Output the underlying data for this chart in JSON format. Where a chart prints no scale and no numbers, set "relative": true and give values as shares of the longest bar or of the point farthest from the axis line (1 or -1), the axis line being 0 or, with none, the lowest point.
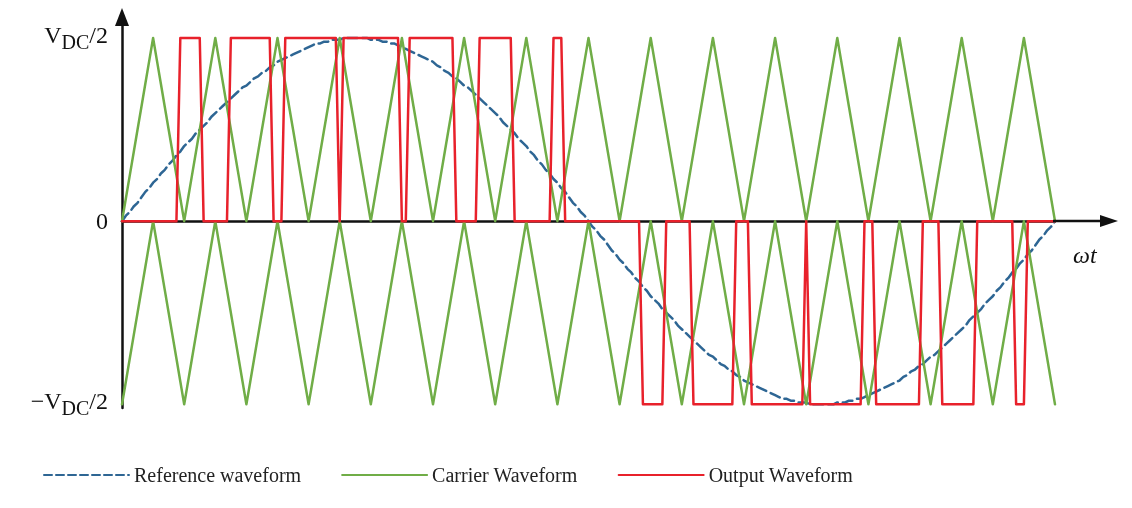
{
  "chart_data": {
    "type": "line",
    "xlabel": "ωt",
    "relative": true,
    "annotations": [
      "V$_{DC}$/2",
      "0",
      "−V$_{DC}$/2"
    ],
    "grid": false,
    "legend": "bottom",
    "marker": "none",
    "categories": [
      null,
      null,
      null,
      null,
      null,
      null,
      null,
      null,
      null,
      null,
      null,
      null,
      null,
      null,
      null,
      null,
      null,
      null,
      null,
      null,
      null,
      null,
      null,
      null,
      null,
      null,
      null,
      null,
      null,
      null,
      null,
      null,
      null,
      null,
      null,
      null,
      null,
      null,
      null,
      null,
      null,
      null,
      null,
      null,
      null,
      null,
      null,
      null,
      null,
      null,
      null,
      null,
      null,
      null,
      null,
      null,
      null,
      null,
      null,
      null,
      null,
      null,
      null,
      null,
      null,
      null,
      null,
      null,
      null,
      null,
      null,
      null,
      null,
      null,
      null,
      null,
      null,
      null,
      null,
      null,
      null,
      null,
      null,
      null,
      null,
      null,
      null,
      null,
      null,
      null,
      null,
      null,
      null,
      null,
      null,
      null,
      null,
      null,
      null,
      null,
      null,
      null,
      null,
      null,
      null,
      null,
      null,
      null,
      null,
      null,
      null,
      null,
      null,
      null,
      null,
      null,
      null,
      null,
      null,
      null,
      null,
      null,
      null,
      null,
      null,
      null,
      null,
      null,
      null,
      null,
      null,
      null,
      null,
      null,
      null,
      null,
      null,
      null,
      null,
      null,
      null,
      null,
      null,
      null,
      null,
      null,
      null,
      null,
      null,
      null,
      null,
      null,
      null,
      null,
      null,
      null,
      null,
      null,
      null,
      null,
      null,
      null,
      null,
      null,
      null,
      null,
      null,
      null,
      null,
      null,
      null,
      null,
      null,
      null,
      null,
      null,
      null,
      null,
      null,
      null,
      null,
      null,
      null,
      null,
      null,
      null,
      null,
      null,
      null,
      null,
      null,
      null,
      null,
      null,
      null,
      null,
      null,
      null,
      null,
      null,
      null,
      null,
      null,
      null,
      null,
      null,
      null,
      null,
      null,
      null,
      null,
      null,
      null,
      null,
      null,
      null,
      null,
      null,
      null,
      null,
      null,
      null,
      null,
      null,
      null,
      null,
      null,
      null,
      null,
      null,
      null,
      null,
      null,
      null,
      null,
      null,
      null,
      null,
      null,
      null,
      null
    ],
    "series": [
      {
        "name": "Reference waveform",
        "color": "#2e6694",
        "line_style": "dashed",
        "values": [
          0,
          0.03,
          0.05,
          0.08,
          0.1,
          0.13,
          0.16,
          0.18,
          0.21,
          0.23,
          0.26,
          0.28,
          0.31,
          0.33,
          0.36,
          0.38,
          0.41,
          0.43,
          0.45,
          0.48,
          0.5,
          0.52,
          0.54,
          0.57,
          0.59,
          0.61,
          0.63,
          0.65,
          0.67,
          0.69,
          0.71,
          0.73,
          0.74,
          0.76,
          0.78,
          0.79,
          0.81,
          0.82,
          0.84,
          0.85,
          0.87,
          0.88,
          0.89,
          0.9,
          0.91,
          0.92,
          0.93,
          0.94,
          0.95,
          0.96,
          0.97,
          0.97,
          0.98,
          0.98,
          0.99,
          0.99,
          0.99,
          1,
          1,
          1,
          1,
          1,
          1,
          1,
          0.99,
          0.99,
          0.99,
          0.98,
          0.98,
          0.97,
          0.97,
          0.96,
          0.95,
          0.94,
          0.93,
          0.92,
          0.91,
          0.9,
          0.89,
          0.88,
          0.87,
          0.85,
          0.84,
          0.82,
          0.81,
          0.79,
          0.78,
          0.76,
          0.74,
          0.73,
          0.71,
          0.69,
          0.67,
          0.65,
          0.63,
          0.61,
          0.59,
          0.57,
          0.54,
          0.52,
          0.5,
          0.48,
          0.45,
          0.43,
          0.41,
          0.38,
          0.36,
          0.33,
          0.31,
          0.28,
          0.26,
          0.23,
          0.21,
          0.18,
          0.16,
          0.13,
          0.1,
          0.08,
          0.05,
          0.03,
          0,
          -0.03,
          -0.05,
          -0.08,
          -0.1,
          -0.13,
          -0.16,
          -0.18,
          -0.21,
          -0.23,
          -0.26,
          -0.28,
          -0.31,
          -0.33,
          -0.36,
          -0.38,
          -0.41,
          -0.43,
          -0.45,
          -0.48,
          -0.5,
          -0.52,
          -0.54,
          -0.57,
          -0.59,
          -0.61,
          -0.63,
          -0.65,
          -0.67,
          -0.69,
          -0.71,
          -0.73,
          -0.74,
          -0.76,
          -0.78,
          -0.79,
          -0.81,
          -0.82,
          -0.84,
          -0.85,
          -0.87,
          -0.88,
          -0.89,
          -0.9,
          -0.91,
          -0.92,
          -0.93,
          -0.94,
          -0.95,
          -0.96,
          -0.97,
          -0.97,
          -0.98,
          -0.98,
          -0.99,
          -0.99,
          -0.99,
          -1,
          -1,
          -1,
          -1,
          -1,
          -1,
          -1,
          -0.99,
          -0.99,
          -0.99,
          -0.98,
          -0.98,
          -0.97,
          -0.97,
          -0.96,
          -0.95,
          -0.94,
          -0.93,
          -0.92,
          -0.91,
          -0.9,
          -0.89,
          -0.88,
          -0.87,
          -0.85,
          -0.84,
          -0.82,
          -0.81,
          -0.79,
          -0.78,
          -0.76,
          -0.74,
          -0.73,
          -0.71,
          -0.69,
          -0.67,
          -0.65,
          -0.63,
          -0.61,
          -0.59,
          -0.57,
          -0.54,
          -0.52,
          -0.5,
          -0.48,
          -0.45,
          -0.43,
          -0.41,
          -0.38,
          -0.36,
          -0.33,
          -0.31,
          -0.28,
          -0.26,
          -0.23,
          -0.21,
          -0.18,
          -0.16,
          -0.13,
          -0.1,
          -0.08,
          -0.05,
          -0.03,
          0
        ]
      },
      {
        "name": "Carrier Waveform",
        "color": "#70ad47",
        "line_style": "solid",
        "values": [
          0,
          0.125,
          0.25,
          0.375,
          0.5,
          0.625,
          0.75,
          0.875,
          1,
          0.875,
          0.75,
          0.625,
          0.5,
          0.375,
          0.25,
          0.125,
          0,
          0.125,
          0.25,
          0.375,
          0.5,
          0.625,
          0.75,
          0.875,
          1,
          0.875,
          0.75,
          0.625,
          0.5,
          0.375,
          0.25,
          0.125,
          0,
          0.125,
          0.25,
          0.375,
          0.5,
          0.625,
          0.75,
          0.875,
          1,
          0.875,
          0.75,
          0.625,
          0.5,
          0.375,
          0.25,
          0.125,
          0,
          0.125,
          0.25,
          0.375,
          0.5,
          0.625,
          0.75,
          0.875,
          1,
          0.875,
          0.75,
          0.625,
          0.5,
          0.375,
          0.25,
          0.125,
          0,
          0.125,
          0.25,
          0.375,
          0.5,
          0.625,
          0.75,
          0.875,
          1,
          0.875,
          0.75,
          0.625,
          0.5,
          0.375,
          0.25,
          0.125,
          0,
          0.125,
          0.25,
          0.375,
          0.5,
          0.625,
          0.75,
          0.875,
          1,
          0.875,
          0.75,
          0.625,
          0.5,
          0.375,
          0.25,
          0.125,
          0,
          0.125,
          0.25,
          0.375,
          0.5,
          0.625,
          0.75,
          0.875,
          1,
          0.875,
          0.75,
          0.625,
          0.5,
          0.375,
          0.25,
          0.125,
          0,
          0.125,
          0.25,
          0.375,
          0.5,
          0.625,
          0.75,
          0.875,
          1,
          0.875,
          0.75,
          0.625,
          0.5,
          0.375,
          0.25,
          0.125,
          0,
          0.125,
          0.25,
          0.375,
          0.5,
          0.625,
          0.75,
          0.875,
          1,
          0.875,
          0.75,
          0.625,
          0.5,
          0.375,
          0.25,
          0.125,
          0,
          0.125,
          0.25,
          0.375,
          0.5,
          0.625,
          0.75,
          0.875,
          1,
          0.875,
          0.75,
          0.625,
          0.5,
          0.375,
          0.25,
          0.125,
          0,
          0.125,
          0.25,
          0.375,
          0.5,
          0.625,
          0.75,
          0.875,
          1,
          0.875,
          0.75,
          0.625,
          0.5,
          0.375,
          0.25,
          0.125,
          0,
          0.125,
          0.25,
          0.375,
          0.5,
          0.625,
          0.75,
          0.875,
          1,
          0.875,
          0.75,
          0.625,
          0.5,
          0.375,
          0.25,
          0.125,
          0,
          0.125,
          0.25,
          0.375,
          0.5,
          0.625,
          0.75,
          0.875,
          1,
          0.875,
          0.75,
          0.625,
          0.5,
          0.375,
          0.25,
          0.125,
          0,
          0.125,
          0.25,
          0.375,
          0.5,
          0.625,
          0.75,
          0.875,
          1,
          0.875,
          0.75,
          0.625,
          0.5,
          0.375,
          0.25,
          0.125,
          0,
          0.125,
          0.25,
          0.375,
          0.5,
          0.625,
          0.75,
          0.875,
          1,
          0.875,
          0.75,
          0.625,
          0.5,
          0.375,
          0.25,
          0.125,
          0
        ]
      },
      {
        "color": "#70ad47",
        "line_style": "solid",
        "values": [
          -1,
          -0.875,
          -0.75,
          -0.625,
          -0.5,
          -0.375,
          -0.25,
          -0.125,
          0,
          -0.125,
          -0.25,
          -0.375,
          -0.5,
          -0.625,
          -0.75,
          -0.875,
          -1,
          -0.875,
          -0.75,
          -0.625,
          -0.5,
          -0.375,
          -0.25,
          -0.125,
          0,
          -0.125,
          -0.25,
          -0.375,
          -0.5,
          -0.625,
          -0.75,
          -0.875,
          -1,
          -0.875,
          -0.75,
          -0.625,
          -0.5,
          -0.375,
          -0.25,
          -0.125,
          0,
          -0.125,
          -0.25,
          -0.375,
          -0.5,
          -0.625,
          -0.75,
          -0.875,
          -1,
          -0.875,
          -0.75,
          -0.625,
          -0.5,
          -0.375,
          -0.25,
          -0.125,
          0,
          -0.125,
          -0.25,
          -0.375,
          -0.5,
          -0.625,
          -0.75,
          -0.875,
          -1,
          -0.875,
          -0.75,
          -0.625,
          -0.5,
          -0.375,
          -0.25,
          -0.125,
          0,
          -0.125,
          -0.25,
          -0.375,
          -0.5,
          -0.625,
          -0.75,
          -0.875,
          -1,
          -0.875,
          -0.75,
          -0.625,
          -0.5,
          -0.375,
          -0.25,
          -0.125,
          0,
          -0.125,
          -0.25,
          -0.375,
          -0.5,
          -0.625,
          -0.75,
          -0.875,
          -1,
          -0.875,
          -0.75,
          -0.625,
          -0.5,
          -0.375,
          -0.25,
          -0.125,
          0,
          -0.125,
          -0.25,
          -0.375,
          -0.5,
          -0.625,
          -0.75,
          -0.875,
          -1,
          -0.875,
          -0.75,
          -0.625,
          -0.5,
          -0.375,
          -0.25,
          -0.125,
          0,
          -0.125,
          -0.25,
          -0.375,
          -0.5,
          -0.625,
          -0.75,
          -0.875,
          -1,
          -0.875,
          -0.75,
          -0.625,
          -0.5,
          -0.375,
          -0.25,
          -0.125,
          0,
          -0.125,
          -0.25,
          -0.375,
          -0.5,
          -0.625,
          -0.75,
          -0.875,
          -1,
          -0.875,
          -0.75,
          -0.625,
          -0.5,
          -0.375,
          -0.25,
          -0.125,
          0,
          -0.125,
          -0.25,
          -0.375,
          -0.5,
          -0.625,
          -0.75,
          -0.875,
          -1,
          -0.875,
          -0.75,
          -0.625,
          -0.5,
          -0.375,
          -0.25,
          -0.125,
          0,
          -0.125,
          -0.25,
          -0.375,
          -0.5,
          -0.625,
          -0.75,
          -0.875,
          -1,
          -0.875,
          -0.75,
          -0.625,
          -0.5,
          -0.375,
          -0.25,
          -0.125,
          0,
          -0.125,
          -0.25,
          -0.375,
          -0.5,
          -0.625,
          -0.75,
          -0.875,
          -1,
          -0.875,
          -0.75,
          -0.625,
          -0.5,
          -0.375,
          -0.25,
          -0.125,
          0,
          -0.125,
          -0.25,
          -0.375,
          -0.5,
          -0.625,
          -0.75,
          -0.875,
          -1,
          -0.875,
          -0.75,
          -0.625,
          -0.5,
          -0.375,
          -0.25,
          -0.125,
          0,
          -0.125,
          -0.25,
          -0.375,
          -0.5,
          -0.625,
          -0.75,
          -0.875,
          -1,
          -0.875,
          -0.75,
          -0.625,
          -0.5,
          -0.375,
          -0.25,
          -0.125,
          0,
          -0.125,
          -0.25,
          -0.375,
          -0.5,
          -0.625,
          -0.75,
          -0.875,
          -1
        ]
      },
      {
        "name": "Output Waveform",
        "color": "#e8212b",
        "line_style": "solid",
        "values": [
          0,
          0,
          0,
          0,
          0,
          0,
          0,
          0,
          0,
          0,
          0,
          0,
          0,
          0,
          0,
          1,
          1,
          1,
          1,
          1,
          1,
          0,
          0,
          0,
          0,
          0,
          0,
          0,
          1,
          1,
          1,
          1,
          1,
          1,
          1,
          1,
          1,
          1,
          1,
          0,
          0,
          0,
          1,
          1,
          1,
          1,
          1,
          1,
          1,
          1,
          1,
          1,
          1,
          1,
          1,
          1,
          0,
          1,
          1,
          1,
          1,
          1,
          1,
          1,
          1,
          1,
          1,
          1,
          1,
          1,
          1,
          1,
          0,
          0,
          1,
          1,
          1,
          1,
          1,
          1,
          1,
          1,
          1,
          1,
          1,
          1,
          0,
          0,
          0,
          0,
          0,
          0,
          1,
          1,
          1,
          1,
          1,
          1,
          1,
          1,
          1,
          0,
          0,
          0,
          0,
          0,
          0,
          0,
          0,
          0,
          0,
          1,
          1,
          1,
          0,
          0,
          0,
          0,
          0,
          0,
          0,
          0,
          0,
          0,
          0,
          0,
          0,
          0,
          0,
          0,
          0,
          0,
          0,
          0,
          -1,
          -1,
          -1,
          -1,
          -1,
          -1,
          0,
          0,
          0,
          0,
          0,
          0,
          0,
          -1,
          -1,
          -1,
          -1,
          -1,
          -1,
          -1,
          -1,
          -1,
          -1,
          -1,
          0,
          0,
          0,
          0,
          -1,
          -1,
          -1,
          -1,
          -1,
          -1,
          -1,
          -1,
          -1,
          -1,
          -1,
          -1,
          -1,
          -1,
          0,
          -1,
          -1,
          -1,
          -1,
          -1,
          -1,
          -1,
          -1,
          -1,
          -1,
          -1,
          -1,
          -1,
          -1,
          0,
          0,
          0,
          -1,
          -1,
          -1,
          -1,
          -1,
          -1,
          -1,
          -1,
          -1,
          -1,
          -1,
          -1,
          0,
          0,
          0,
          0,
          0,
          -1,
          -1,
          -1,
          -1,
          -1,
          -1,
          -1,
          -1,
          -1,
          0,
          0,
          0,
          0,
          0,
          0,
          0,
          0,
          0,
          0,
          -1,
          -1,
          -1,
          0,
          0,
          0,
          0,
          0,
          0,
          0,
          0
        ]
      }
    ]
  }
}
